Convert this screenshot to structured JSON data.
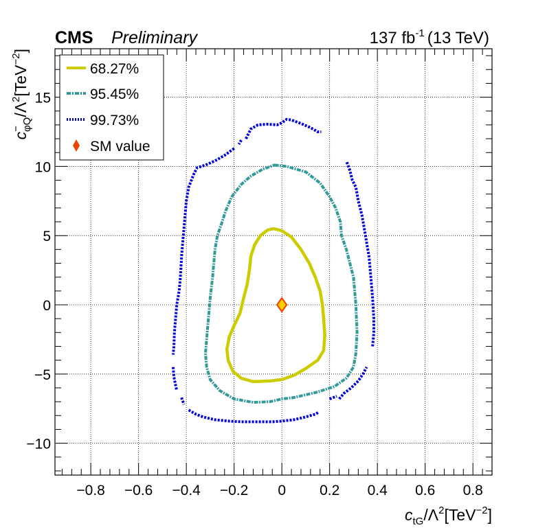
{
  "header": {
    "experiment": "CMS",
    "status": "Preliminary",
    "luminosity": "137",
    "lumi_unit": "fb",
    "lumi_exp": "-1",
    "energy": "(13 TeV)"
  },
  "chart_data": {
    "type": "scatter",
    "title": "",
    "xlabel": {
      "sym": "c",
      "sub": "tG",
      "slash": "/Λ",
      "sq": "2",
      "unit": "[TeV",
      "exp": "−2",
      "close": "]"
    },
    "ylabel": {
      "sym": "c",
      "sup": "−",
      "sub": "φQ",
      "slash": "/Λ",
      "sq": "2",
      "unit": "[TeV",
      "exp": "−2",
      "close": "]"
    },
    "xlim": [
      -0.95,
      0.88
    ],
    "ylim": [
      -12.3,
      18.5
    ],
    "x_ticks": [
      -0.8,
      -0.6,
      -0.4,
      -0.2,
      0,
      0.2,
      0.4,
      0.6,
      0.8
    ],
    "x_tick_labels": [
      "−0.8",
      "−0.6",
      "−0.4",
      "−0.2",
      "0",
      "0.2",
      "0.4",
      "0.6",
      "0.8"
    ],
    "y_ticks": [
      -10,
      -5,
      0,
      5,
      10,
      15
    ],
    "y_tick_labels": [
      "−10",
      "−5",
      "0",
      "5",
      "10",
      "15"
    ],
    "grid": true,
    "legend_position": "top-left",
    "series": [
      {
        "name": "68.27%",
        "color": "#cccc00",
        "style": "solid",
        "closed": true,
        "points": [
          [
            -0.035,
            5.5
          ],
          [
            0.0,
            5.35
          ],
          [
            0.04,
            4.9
          ],
          [
            0.08,
            4.0
          ],
          [
            0.115,
            3.0
          ],
          [
            0.14,
            2.0
          ],
          [
            0.16,
            1.0
          ],
          [
            0.17,
            0.0
          ],
          [
            0.175,
            -1.0
          ],
          [
            0.18,
            -2.2
          ],
          [
            0.175,
            -3.3
          ],
          [
            0.15,
            -4.0
          ],
          [
            0.1,
            -4.6
          ],
          [
            0.05,
            -5.1
          ],
          [
            0.0,
            -5.4
          ],
          [
            -0.05,
            -5.5
          ],
          [
            -0.12,
            -5.55
          ],
          [
            -0.17,
            -5.3
          ],
          [
            -0.205,
            -4.8
          ],
          [
            -0.225,
            -4.0
          ],
          [
            -0.23,
            -3.2
          ],
          [
            -0.22,
            -2.3
          ],
          [
            -0.2,
            -1.5
          ],
          [
            -0.175,
            -0.6
          ],
          [
            -0.16,
            0.5
          ],
          [
            -0.145,
            1.5
          ],
          [
            -0.135,
            2.6
          ],
          [
            -0.13,
            3.5
          ],
          [
            -0.115,
            4.3
          ],
          [
            -0.09,
            5.0
          ],
          [
            -0.06,
            5.4
          ]
        ]
      },
      {
        "name": "95.45%",
        "color": "#339999",
        "style": "dashdot",
        "closed": true,
        "points": [
          [
            -0.03,
            10.1
          ],
          [
            0.02,
            10.0
          ],
          [
            0.1,
            9.6
          ],
          [
            0.16,
            8.8
          ],
          [
            0.2,
            7.8
          ],
          [
            0.225,
            7.0
          ],
          [
            0.245,
            6.0
          ],
          [
            0.25,
            5.0
          ],
          [
            0.27,
            4.0
          ],
          [
            0.285,
            3.0
          ],
          [
            0.3,
            2.0
          ],
          [
            0.31,
            0.0
          ],
          [
            0.315,
            -2.0
          ],
          [
            0.31,
            -3.5
          ],
          [
            0.3,
            -4.5
          ],
          [
            0.27,
            -5.3
          ],
          [
            0.22,
            -5.9
          ],
          [
            0.15,
            -6.3
          ],
          [
            0.05,
            -6.7
          ],
          [
            0.0,
            -6.8
          ],
          [
            -0.05,
            -7.0
          ],
          [
            -0.12,
            -7.05
          ],
          [
            -0.2,
            -6.8
          ],
          [
            -0.26,
            -6.2
          ],
          [
            -0.3,
            -5.4
          ],
          [
            -0.315,
            -4.5
          ],
          [
            -0.32,
            -3.5
          ],
          [
            -0.315,
            -2.5
          ],
          [
            -0.31,
            -1.5
          ],
          [
            -0.305,
            -0.5
          ],
          [
            -0.3,
            0.5
          ],
          [
            -0.29,
            2.0
          ],
          [
            -0.285,
            3.0
          ],
          [
            -0.28,
            4.0
          ],
          [
            -0.27,
            5.0
          ],
          [
            -0.25,
            6.0
          ],
          [
            -0.235,
            6.8
          ],
          [
            -0.21,
            7.8
          ],
          [
            -0.17,
            8.7
          ],
          [
            -0.13,
            9.3
          ],
          [
            -0.08,
            9.8
          ]
        ]
      },
      {
        "name": "99.73%",
        "color": "#0000dd",
        "style": "dotted",
        "closed": false,
        "segments": [
          [
            [
              -0.15,
              12.0
            ],
            [
              -0.13,
              12.7
            ],
            [
              -0.1,
              13.0
            ],
            [
              -0.06,
              13.05
            ],
            [
              -0.02,
              13.0
            ],
            [
              0.0,
              13.15
            ],
            [
              0.02,
              13.4
            ],
            [
              0.04,
              13.35
            ],
            [
              0.08,
              13.1
            ],
            [
              0.12,
              12.8
            ],
            [
              0.15,
              12.5
            ],
            [
              0.165,
              12.5
            ]
          ],
          [
            [
              -0.17,
              11.9
            ],
            [
              -0.18,
              11.6
            ]
          ],
          [
            [
              -0.2,
              11.3
            ],
            [
              -0.24,
              10.8
            ],
            [
              -0.28,
              10.4
            ],
            [
              -0.32,
              10.1
            ],
            [
              -0.355,
              9.9
            ],
            [
              -0.37,
              9.4
            ],
            [
              -0.39,
              8.5
            ],
            [
              -0.4,
              7.5
            ],
            [
              -0.405,
              6.5
            ],
            [
              -0.41,
              5.5
            ],
            [
              -0.415,
              4.5
            ],
            [
              -0.42,
              3.5
            ],
            [
              -0.425,
              2.0
            ],
            [
              -0.43,
              1.0
            ],
            [
              -0.44,
              0.0
            ],
            [
              -0.445,
              -1.0
            ],
            [
              -0.45,
              -2.0
            ],
            [
              -0.452,
              -3.0
            ],
            [
              -0.455,
              -3.6
            ]
          ],
          [
            [
              -0.455,
              -4.5
            ],
            [
              -0.452,
              -5.2
            ],
            [
              -0.445,
              -5.8
            ],
            [
              -0.44,
              -6.2
            ]
          ],
          [
            [
              -0.42,
              -6.7
            ],
            [
              -0.41,
              -7.2
            ]
          ],
          [
            [
              -0.39,
              -7.6
            ],
            [
              -0.36,
              -7.9
            ],
            [
              -0.33,
              -8.1
            ],
            [
              -0.28,
              -8.3
            ],
            [
              -0.22,
              -8.4
            ],
            [
              -0.17,
              -8.45
            ],
            [
              -0.1,
              -8.45
            ],
            [
              -0.04,
              -8.45
            ],
            [
              0.0,
              -8.4
            ],
            [
              0.05,
              -8.3
            ],
            [
              0.1,
              -8.1
            ],
            [
              0.14,
              -7.9
            ],
            [
              0.155,
              -7.75
            ]
          ],
          [
            [
              0.2,
              -6.8
            ],
            [
              0.23,
              -6.6
            ]
          ],
          [
            [
              0.24,
              -6.8
            ],
            [
              0.26,
              -6.4
            ],
            [
              0.29,
              -6.0
            ],
            [
              0.32,
              -5.5
            ],
            [
              0.34,
              -5.0
            ],
            [
              0.355,
              -4.5
            ]
          ],
          [
            [
              0.38,
              -3.0
            ],
            [
              0.385,
              -2.0
            ],
            [
              0.385,
              -1.0
            ],
            [
              0.38,
              0.5
            ],
            [
              0.375,
              1.5
            ],
            [
              0.37,
              2.5
            ],
            [
              0.365,
              3.5
            ],
            [
              0.355,
              4.5
            ],
            [
              0.345,
              5.5
            ],
            [
              0.335,
              6.5
            ],
            [
              0.32,
              7.5
            ],
            [
              0.31,
              8.5
            ],
            [
              0.295,
              9.0
            ],
            [
              0.285,
              9.7
            ],
            [
              0.27,
              10.4
            ]
          ]
        ]
      },
      {
        "name": "SM value",
        "color": "#ee4400",
        "style": "marker",
        "points": [
          [
            0,
            0
          ]
        ]
      }
    ]
  }
}
